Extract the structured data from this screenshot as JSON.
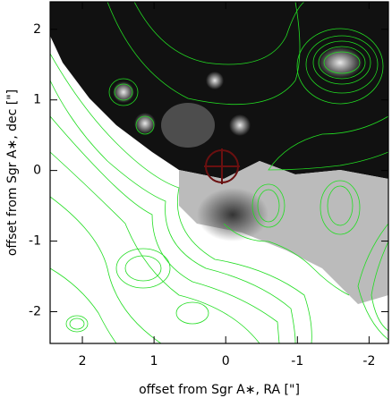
{
  "chart_data": {
    "type": "image",
    "xlabel": "offset from Sgr A∗, RA [\"]",
    "ylabel": "offset from Sgr A∗, dec [\"]",
    "xlim": [
      2.45,
      -2.27
    ],
    "xticks": [
      2,
      1,
      0,
      -1,
      -2
    ],
    "ylim": [
      -2.45,
      2.39
    ],
    "yticks": [
      -2,
      -1,
      0,
      1,
      2
    ],
    "contour_color": "#22dd22"
  }
}
